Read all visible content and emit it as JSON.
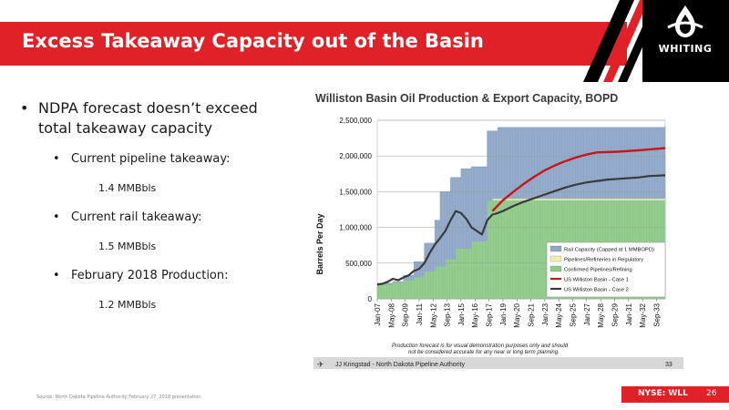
{
  "header": {
    "title": "Excess Takeaway Capacity out of the Basin",
    "logo_text": "WHITING"
  },
  "bullets": {
    "main": "NDPA forecast doesn’t exceed total takeaway capacity",
    "items": [
      {
        "label": "Current pipeline takeaway:",
        "value": "1.4 MMBbls"
      },
      {
        "label": "Current rail takeaway:",
        "value": "1.5 MMBbls"
      },
      {
        "label": "February 2018 Production:",
        "value": "1.2 MMBbls"
      }
    ]
  },
  "footer": {
    "source": "Source: North Dakota Pipeline Authority February 27, 2018 presentation.",
    "ticker": "NYSE: WLL",
    "page": "26"
  },
  "colors": {
    "accent": "#e02228",
    "rail": "#8fa7c6",
    "regulatory": "#f2ecae",
    "confirmed": "#8ec98a",
    "case1": "#c8151c",
    "case2": "#3a3a3a"
  },
  "chart_data": {
    "type": "area",
    "title": "Williston Basin Oil Production & Export Capacity, BOPD",
    "ylabel": "Barrels Per Day",
    "xlabel": "",
    "ylim": [
      0,
      2500000
    ],
    "yticks": [
      "0",
      "500,000",
      "1,000,000",
      "1,500,000",
      "2,000,000",
      "2,500,000"
    ],
    "ytick_values": [
      0,
      500000,
      1000000,
      1500000,
      2000000,
      2500000
    ],
    "xlim": [
      2007.0,
      2034.5
    ],
    "xticks": [
      "Jan-07",
      "May-08",
      "Sep-09",
      "Jan-11",
      "May-12",
      "Sep-13",
      "Jan-15",
      "May-16",
      "Sep-17",
      "Jan-19",
      "May-20",
      "Sep-21",
      "Jan-23",
      "May-24",
      "Sep-25",
      "Jan-27",
      "May-28",
      "Sep-29",
      "Jan-31",
      "May-32",
      "Sep-33"
    ],
    "xtick_values": [
      2007.0,
      2008.333,
      2009.667,
      2011.0,
      2012.333,
      2013.667,
      2015.0,
      2016.333,
      2017.667,
      2019.0,
      2020.333,
      2021.667,
      2023.0,
      2024.333,
      2025.667,
      2027.0,
      2028.333,
      2029.667,
      2031.0,
      2032.333,
      2033.667
    ],
    "legend_position": "bottom-right",
    "series": [
      {
        "name": "Rail Capacity (Capped at 1 MMBOPD)",
        "kind": "area",
        "x": [
          2007.0,
          2008.5,
          2009.5,
          2010.5,
          2011.5,
          2012.5,
          2013.0,
          2014.0,
          2015.0,
          2016.0,
          2017.5,
          2018.5,
          2034.5
        ],
        "y": [
          220000,
          240000,
          330000,
          520000,
          780000,
          1100000,
          1500000,
          1700000,
          1820000,
          1850000,
          2350000,
          2400000,
          2420000
        ]
      },
      {
        "name": "Pipelines/Refineries in Regulatory",
        "kind": "area",
        "x": [
          2007.0,
          2017.5,
          2018.0,
          2034.5
        ],
        "y": [
          0,
          0,
          1400000,
          1450000
        ]
      },
      {
        "name": "Confirmed Pipelines/Refining",
        "kind": "area",
        "x": [
          2007.0,
          2008.5,
          2009.5,
          2010.5,
          2011.5,
          2012.5,
          2013.5,
          2014.5,
          2016.0,
          2017.5,
          2018.0,
          2034.5
        ],
        "y": [
          200000,
          230000,
          260000,
          300000,
          380000,
          450000,
          550000,
          700000,
          800000,
          1370000,
          1380000,
          1380000
        ]
      },
      {
        "name": "US Williston Basin - Case 1",
        "kind": "line",
        "x": [
          2018.0,
          2019.0,
          2020.0,
          2021.0,
          2022.0,
          2023.0,
          2024.0,
          2025.0,
          2026.0,
          2027.0,
          2028.0,
          2030.0,
          2032.0,
          2034.5
        ],
        "y": [
          1230000,
          1380000,
          1500000,
          1610000,
          1710000,
          1800000,
          1870000,
          1930000,
          1980000,
          2020000,
          2050000,
          2060000,
          2080000,
          2110000
        ]
      },
      {
        "name": "US Williston Basin - Case 2",
        "kind": "line",
        "x": [
          2007.0,
          2007.5,
          2008.0,
          2008.5,
          2009.0,
          2009.5,
          2010.0,
          2010.5,
          2011.0,
          2011.5,
          2012.0,
          2012.5,
          2013.0,
          2013.5,
          2014.0,
          2014.5,
          2015.0,
          2015.5,
          2016.0,
          2016.5,
          2017.0,
          2017.5,
          2018.0,
          2018.5,
          2019.0,
          2020.0,
          2021.0,
          2022.0,
          2023.0,
          2024.0,
          2025.0,
          2026.0,
          2027.0,
          2028.0,
          2029.0,
          2030.0,
          2031.0,
          2032.0,
          2033.0,
          2034.5
        ],
        "y": [
          200000,
          210000,
          240000,
          280000,
          260000,
          300000,
          330000,
          390000,
          420000,
          500000,
          640000,
          760000,
          850000,
          950000,
          1100000,
          1230000,
          1200000,
          1120000,
          1000000,
          950000,
          900000,
          1100000,
          1180000,
          1200000,
          1230000,
          1300000,
          1360000,
          1410000,
          1460000,
          1510000,
          1560000,
          1600000,
          1630000,
          1650000,
          1670000,
          1680000,
          1690000,
          1700000,
          1720000,
          1730000
        ]
      }
    ],
    "annotation": "Production forecast is for visual demonstration purposes only and should not be considered accurate for any near or long term planning.",
    "credit": "JJ Kringstad - North Dakota Pipeline Authority",
    "slide_number": "33"
  }
}
